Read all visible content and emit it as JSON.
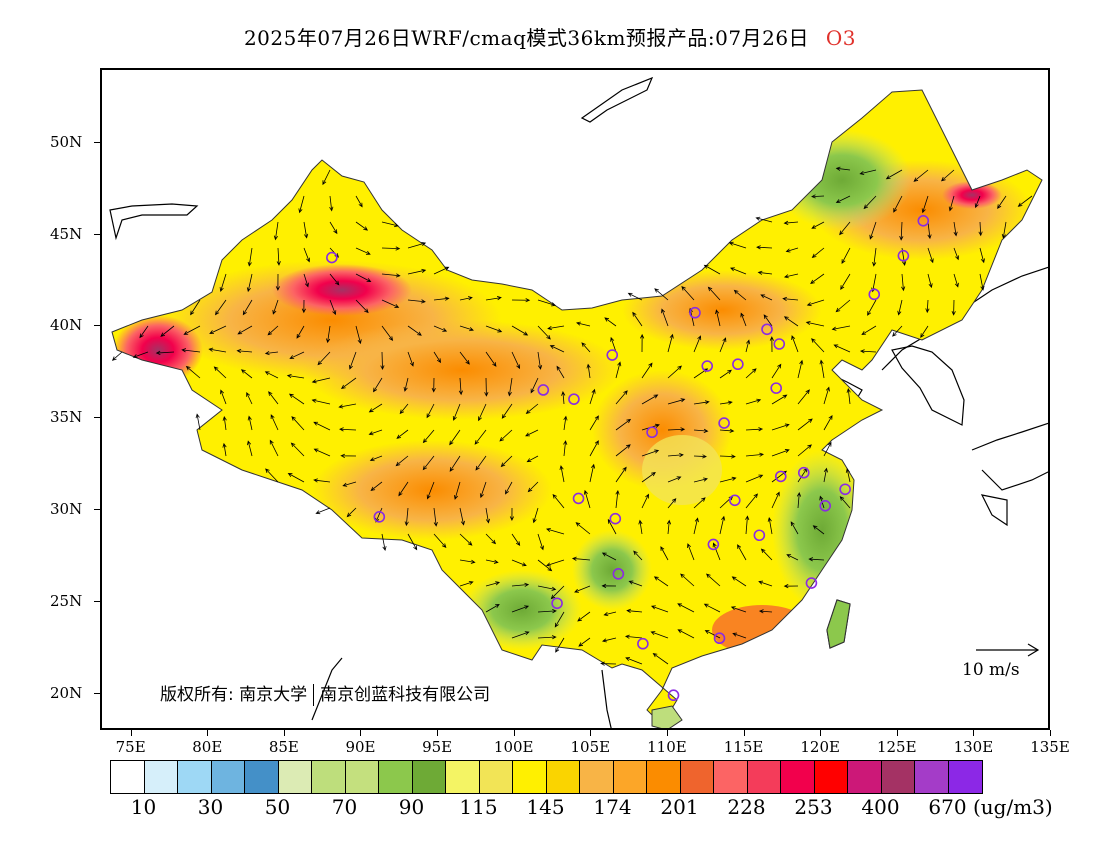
{
  "title": {
    "text": "2025年07月26日WRF/cmaq模式36km预报产品:07月26日",
    "species": "O3"
  },
  "map": {
    "lat_labels": [
      "50N",
      "45N",
      "40N",
      "35N",
      "30N",
      "25N",
      "20N"
    ],
    "lon_labels": [
      "75E",
      "80E",
      "85E",
      "90E",
      "95E",
      "100E",
      "105E",
      "110E",
      "115E",
      "120E",
      "125E",
      "130E",
      "135E"
    ],
    "extent": {
      "lon": [
        73,
        135
      ],
      "lat": [
        18,
        54
      ]
    }
  },
  "copyright": {
    "part1": "版权所有: 南京大学",
    "part2": "南京创蓝科技有限公司"
  },
  "wind_reference": {
    "label": "10 m/s",
    "value_ms": 10
  },
  "legend": {
    "colors": [
      "#ffffff",
      "#d6effa",
      "#9ed8f5",
      "#6eb4e0",
      "#4490c8",
      "#dcebb4",
      "#bede7c",
      "#c4e07e",
      "#8cc84c",
      "#6eaa36",
      "#f4f464",
      "#f2e456",
      "#fff000",
      "#fad400",
      "#f8b446",
      "#fca628",
      "#fb8c00",
      "#ef642d",
      "#fc6464",
      "#f43c5a",
      "#f2004c",
      "#ff0000",
      "#cc1878",
      "#a43264",
      "#a43cc8",
      "#8c28e6"
    ],
    "labels": [
      "10",
      "30",
      "50",
      "70",
      "90",
      "115",
      "145",
      "174",
      "201",
      "228",
      "253",
      "400",
      "670"
    ],
    "unit": "(ug/m3)"
  },
  "stations": [
    {
      "lon": 88.0,
      "lat": 43.8
    },
    {
      "lon": 91.1,
      "lat": 29.7
    },
    {
      "lon": 101.8,
      "lat": 36.6
    },
    {
      "lon": 103.8,
      "lat": 36.1
    },
    {
      "lon": 106.3,
      "lat": 38.5
    },
    {
      "lon": 111.7,
      "lat": 40.8
    },
    {
      "lon": 112.5,
      "lat": 37.9
    },
    {
      "lon": 114.5,
      "lat": 38.0
    },
    {
      "lon": 116.4,
      "lat": 39.9
    },
    {
      "lon": 117.2,
      "lat": 39.1
    },
    {
      "lon": 117.0,
      "lat": 36.7
    },
    {
      "lon": 113.6,
      "lat": 34.8
    },
    {
      "lon": 108.9,
      "lat": 34.3
    },
    {
      "lon": 104.1,
      "lat": 30.7
    },
    {
      "lon": 106.5,
      "lat": 29.6
    },
    {
      "lon": 106.7,
      "lat": 26.6
    },
    {
      "lon": 102.7,
      "lat": 25.0
    },
    {
      "lon": 108.3,
      "lat": 22.8
    },
    {
      "lon": 113.3,
      "lat": 23.1
    },
    {
      "lon": 110.3,
      "lat": 20.0
    },
    {
      "lon": 112.9,
      "lat": 28.2
    },
    {
      "lon": 114.3,
      "lat": 30.6
    },
    {
      "lon": 115.9,
      "lat": 28.7
    },
    {
      "lon": 117.3,
      "lat": 31.9
    },
    {
      "lon": 118.8,
      "lat": 32.1
    },
    {
      "lon": 120.2,
      "lat": 30.3
    },
    {
      "lon": 121.5,
      "lat": 31.2
    },
    {
      "lon": 119.3,
      "lat": 26.1
    },
    {
      "lon": 123.4,
      "lat": 41.8
    },
    {
      "lon": 125.3,
      "lat": 43.9
    },
    {
      "lon": 126.6,
      "lat": 45.8
    }
  ]
}
